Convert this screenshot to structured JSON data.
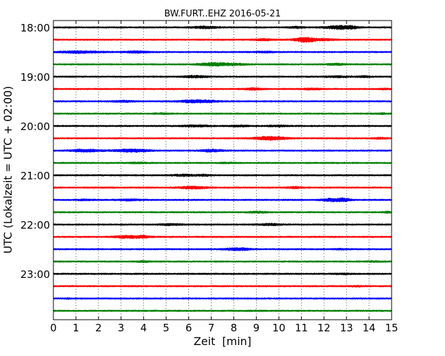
{
  "chart_data": {
    "type": "line",
    "title": "BW.FURT..EHZ 2016-05-21",
    "xlabel": "Zeit  [min]",
    "ylabel": "UTC (Lokalzeit = UTC + 02:00)",
    "xlim": [
      0,
      15
    ],
    "x_ticks": [
      "0",
      "1",
      "2",
      "3",
      "4",
      "5",
      "6",
      "7",
      "8",
      "9",
      "10",
      "11",
      "12",
      "13",
      "14",
      "15"
    ],
    "y_ticks": [
      "18:00",
      "19:00",
      "20:00",
      "21:00",
      "22:00",
      "23:00"
    ],
    "grid": "vertical dotted",
    "trace_interval_minutes": 15,
    "colors": [
      "#000000",
      "#ff0000",
      "#0000ff",
      "#008000"
    ],
    "traces": [
      {
        "start": "18:00",
        "color": "#000000",
        "bursts": [
          [
            6.7,
            0.6,
            2.2
          ],
          [
            10.8,
            0.3,
            2
          ],
          [
            12.7,
            0.6,
            3
          ],
          [
            13.2,
            0.3,
            2
          ]
        ]
      },
      {
        "start": "18:15",
        "color": "#ff0000",
        "bursts": [
          [
            9.3,
            0.4,
            2
          ],
          [
            11.0,
            0.4,
            2.5
          ],
          [
            11.3,
            0.4,
            3
          ],
          [
            12.0,
            0.5,
            2
          ]
        ]
      },
      {
        "start": "18:30",
        "color": "#0000ff",
        "bursts": [
          [
            0.8,
            0.6,
            1.8
          ],
          [
            1.5,
            0.8,
            1.8
          ],
          [
            3.7,
            0.5,
            2.2
          ],
          [
            9.4,
            0.4,
            1.8
          ]
        ]
      },
      {
        "start": "18:45",
        "color": "#008000",
        "bursts": [
          [
            6.8,
            0.5,
            2
          ],
          [
            7.3,
            0.5,
            2.5
          ],
          [
            8.1,
            0.5,
            2
          ],
          [
            12.5,
            0.4,
            2
          ]
        ]
      },
      {
        "start": "19:00",
        "color": "#000000",
        "bursts": [
          [
            6.3,
            0.5,
            2.2
          ],
          [
            12.6,
            0.5,
            1.8
          ],
          [
            13.8,
            0.3,
            1.8
          ]
        ]
      },
      {
        "start": "19:15",
        "color": "#ff0000",
        "bursts": [
          [
            8.9,
            0.4,
            2.2
          ],
          [
            11.5,
            0.4,
            1.8
          ],
          [
            14.7,
            0.2,
            1.8
          ]
        ]
      },
      {
        "start": "19:30",
        "color": "#0000ff",
        "bursts": [
          [
            3.1,
            0.5,
            1.8
          ],
          [
            6.4,
            0.8,
            2.8
          ]
        ]
      },
      {
        "start": "19:45",
        "color": "#008000",
        "bursts": [
          [
            4.8,
            0.4,
            1.5
          ],
          [
            14.6,
            0.3,
            1.5
          ]
        ]
      },
      {
        "start": "20:00",
        "color": "#000000",
        "bursts": [
          [
            6.3,
            0.6,
            2
          ],
          [
            8.3,
            0.4,
            1.8
          ],
          [
            10.0,
            0.5,
            1.8
          ]
        ]
      },
      {
        "start": "20:15",
        "color": "#ff0000",
        "bursts": [
          [
            9.2,
            0.4,
            2
          ],
          [
            9.8,
            0.6,
            3
          ],
          [
            14.5,
            0.3,
            1.8
          ]
        ]
      },
      {
        "start": "20:30",
        "color": "#0000ff",
        "bursts": [
          [
            1.4,
            0.7,
            2.5
          ],
          [
            3.3,
            0.6,
            2.5
          ],
          [
            4.0,
            0.4,
            2
          ],
          [
            7.0,
            0.5,
            2.5
          ]
        ]
      },
      {
        "start": "20:45",
        "color": "#008000",
        "bursts": [
          [
            3.8,
            0.4,
            1.5
          ],
          [
            7.7,
            0.3,
            1.5
          ]
        ]
      },
      {
        "start": "21:00",
        "color": "#000000",
        "bursts": [
          [
            5.8,
            0.5,
            2
          ],
          [
            6.7,
            0.3,
            1.8
          ]
        ]
      },
      {
        "start": "21:15",
        "color": "#ff0000",
        "bursts": [
          [
            6.2,
            0.6,
            2.5
          ],
          [
            10.7,
            0.3,
            2
          ]
        ]
      },
      {
        "start": "21:30",
        "color": "#0000ff",
        "bursts": [
          [
            1.4,
            0.4,
            1.5
          ],
          [
            3.4,
            0.5,
            1.8
          ],
          [
            12.4,
            0.5,
            2.8
          ],
          [
            12.9,
            0.3,
            2.5
          ]
        ]
      },
      {
        "start": "21:45",
        "color": "#008000",
        "bursts": [
          [
            9.1,
            0.4,
            1.8
          ],
          [
            14.8,
            0.2,
            1.8
          ]
        ]
      },
      {
        "start": "22:00",
        "color": "#000000",
        "bursts": [
          [
            5.2,
            0.5,
            1.8
          ],
          [
            9.6,
            0.5,
            2
          ]
        ]
      },
      {
        "start": "22:15",
        "color": "#ff0000",
        "bursts": [
          [
            3.3,
            0.6,
            2.5
          ],
          [
            4.0,
            0.3,
            2
          ]
        ]
      },
      {
        "start": "22:30",
        "color": "#0000ff",
        "bursts": [
          [
            7.9,
            0.4,
            2
          ],
          [
            8.4,
            0.4,
            2.2
          ],
          [
            12.8,
            0.3,
            1.5
          ]
        ]
      },
      {
        "start": "22:45",
        "color": "#008000",
        "bursts": [
          [
            4.0,
            0.3,
            1.8
          ],
          [
            14.2,
            0.3,
            1.5
          ]
        ]
      },
      {
        "start": "23:00",
        "color": "#000000",
        "bursts": [
          [
            12.9,
            0.4,
            1.5
          ]
        ]
      },
      {
        "start": "23:15",
        "color": "#ff0000",
        "bursts": [
          [
            13.5,
            0.3,
            1.5
          ]
        ]
      },
      {
        "start": "23:30",
        "color": "#0000ff",
        "bursts": [
          [
            0.6,
            0.1,
            1.5
          ]
        ]
      },
      {
        "start": "23:45",
        "color": "#008000",
        "bursts": [
          [
            8.9,
            0.3,
            1.3
          ]
        ]
      }
    ]
  }
}
